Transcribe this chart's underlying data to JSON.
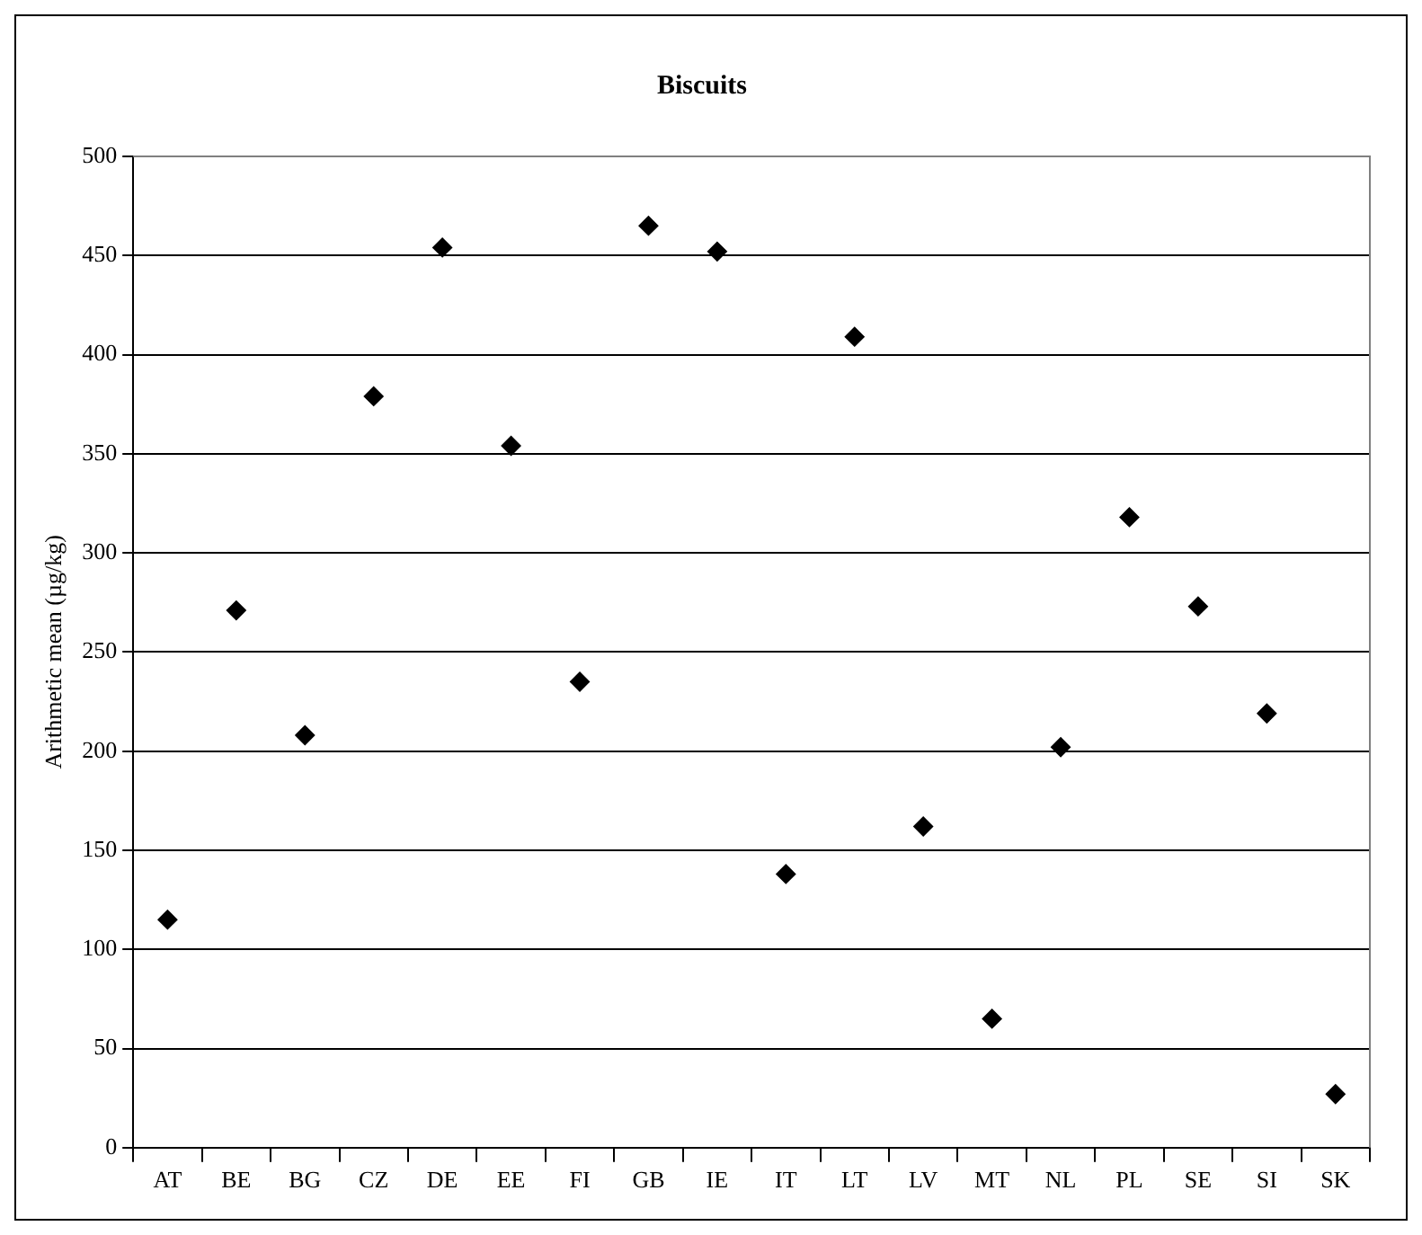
{
  "chart_data": {
    "type": "scatter",
    "title": "Biscuits",
    "ylabel": "Arithmetic mean (µg/kg)",
    "categories": [
      "AT",
      "BE",
      "BG",
      "CZ",
      "DE",
      "EE",
      "FI",
      "GB",
      "IE",
      "IT",
      "LT",
      "LV",
      "MT",
      "NL",
      "PL",
      "SE",
      "SI",
      "SK"
    ],
    "series": [
      {
        "color": "#000000",
        "values": [
          115,
          271,
          208,
          379,
          454,
          354,
          235,
          465,
          452,
          138,
          409,
          162,
          65,
          202,
          318,
          273,
          219,
          27
        ]
      }
    ],
    "ylim": [
      0,
      500
    ],
    "yticks": [
      0,
      50,
      100,
      150,
      200,
      250,
      300,
      350,
      400,
      450,
      500
    ],
    "grid": "y",
    "marker": "diamond",
    "legend": false
  }
}
